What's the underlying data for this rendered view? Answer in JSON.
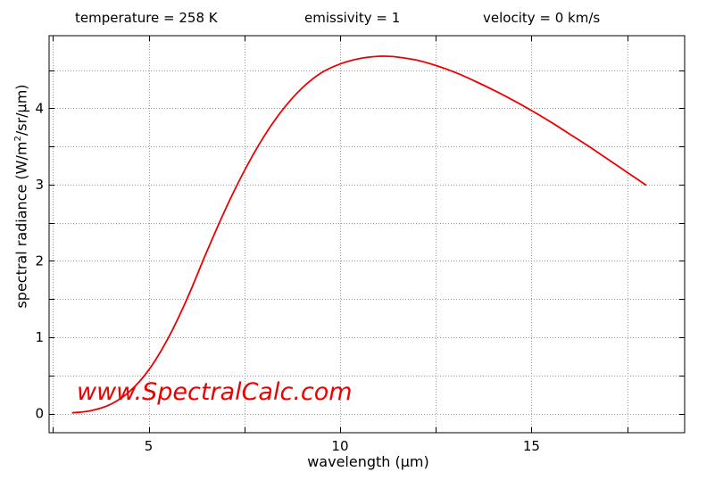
{
  "header": {
    "temperature": "temperature = 258 K",
    "emissivity": "emissivity = 1",
    "velocity": "velocity = 0 km/s"
  },
  "watermark": "www.SpectralCalc.com",
  "colors": {
    "curve": "#ee0000",
    "grid": "#9a9a9a",
    "axes": "#000000"
  },
  "chart_data": {
    "type": "line",
    "title": "",
    "xlabel": "wavelength (µm)",
    "ylabel": {
      "prefix": "spectral radiance (W/m",
      "sup": "2",
      "suffix": "/sr/µm)"
    },
    "xlim": [
      2.4,
      19.0
    ],
    "ylim": [
      -0.25,
      4.95
    ],
    "xticks": [
      5,
      10,
      15
    ],
    "yticks": [
      0,
      1,
      2,
      3,
      4
    ],
    "grid": true,
    "series": [
      {
        "x": [
          3.0,
          3.5,
          4.0,
          4.5,
          5.0,
          5.5,
          6.0,
          6.5,
          7.0,
          7.5,
          8.0,
          8.5,
          9.0,
          9.5,
          10.0,
          10.5,
          11.0,
          11.25,
          11.5,
          12.0,
          12.5,
          13.0,
          13.5,
          14.0,
          14.5,
          15.0,
          15.5,
          16.0,
          16.5,
          17.0,
          17.5,
          18.0
        ],
        "y": [
          0.01,
          0.04,
          0.12,
          0.29,
          0.57,
          0.98,
          1.5,
          2.1,
          2.67,
          3.18,
          3.62,
          3.98,
          4.26,
          4.46,
          4.58,
          4.65,
          4.68,
          4.68,
          4.67,
          4.63,
          4.56,
          4.47,
          4.36,
          4.24,
          4.11,
          3.97,
          3.82,
          3.66,
          3.5,
          3.33,
          3.16,
          2.99
        ]
      }
    ]
  }
}
